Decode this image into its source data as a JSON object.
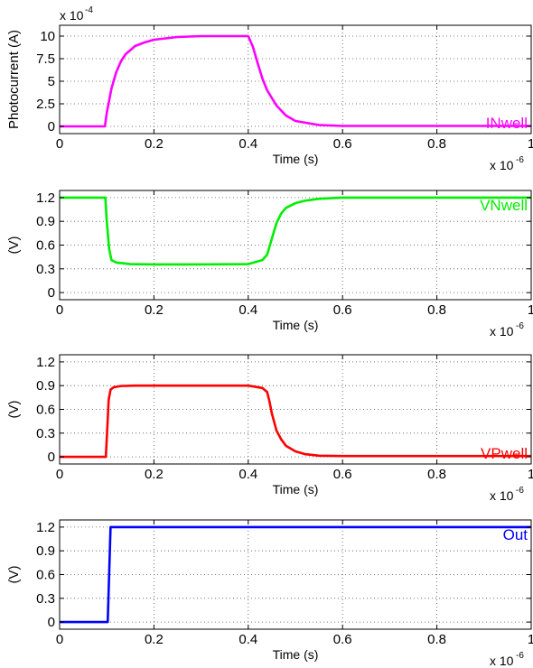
{
  "chart_data": [
    {
      "type": "line",
      "ylabel": "Photocurrent (A)",
      "xlabel": "Time (s)",
      "x_exponent_label": "x 10",
      "x_exponent": "-6",
      "y_exponent_label": "x 10",
      "y_exponent": "-4",
      "xlim": [
        0,
        1
      ],
      "ylim": [
        -0.8,
        11.2
      ],
      "xticks": [
        0,
        0.2,
        0.4,
        0.6,
        0.8,
        1
      ],
      "xtick_labels": [
        "0",
        "0.2",
        "0.4",
        "0.6",
        "0.8",
        "1"
      ],
      "yticks": [
        0,
        2.5,
        5,
        7.5,
        10
      ],
      "ytick_labels": [
        "0",
        "2.5",
        "5",
        "7.5",
        "10"
      ],
      "grid": true,
      "legend_position": "bottom-right",
      "series": [
        {
          "name": "INwell",
          "color": "#ff00ff",
          "x": [
            0,
            0.096,
            0.1,
            0.11,
            0.12,
            0.13,
            0.14,
            0.16,
            0.18,
            0.2,
            0.25,
            0.3,
            0.4,
            0.41,
            0.42,
            0.43,
            0.44,
            0.46,
            0.48,
            0.5,
            0.55,
            0.6,
            1.0
          ],
          "y": [
            0,
            0,
            1.5,
            4.2,
            6.0,
            7.2,
            8.0,
            8.9,
            9.3,
            9.6,
            9.9,
            10,
            10,
            8.8,
            7.0,
            5.3,
            4.0,
            2.3,
            1.2,
            0.6,
            0.15,
            0.05,
            0.05
          ]
        }
      ]
    },
    {
      "type": "line",
      "ylabel": "(V)",
      "xlabel": "Time (s)",
      "x_exponent_label": "x 10",
      "x_exponent": "-6",
      "xlim": [
        0,
        1
      ],
      "ylim": [
        -0.09,
        1.29
      ],
      "xticks": [
        0,
        0.2,
        0.4,
        0.6,
        0.8,
        1
      ],
      "xtick_labels": [
        "0",
        "0.2",
        "0.4",
        "0.6",
        "0.8",
        "1"
      ],
      "yticks": [
        0,
        0.3,
        0.6,
        0.9,
        1.2
      ],
      "ytick_labels": [
        "0",
        "0.3",
        "0.6",
        "0.9",
        "1.2"
      ],
      "grid": true,
      "legend_position": "top-right",
      "series": [
        {
          "name": "VNwell",
          "color": "#00ee00",
          "x": [
            0,
            0.097,
            0.1,
            0.105,
            0.11,
            0.12,
            0.15,
            0.2,
            0.3,
            0.4,
            0.43,
            0.44,
            0.45,
            0.46,
            0.47,
            0.48,
            0.5,
            0.52,
            0.55,
            0.6,
            1.0
          ],
          "y": [
            1.2,
            1.2,
            0.9,
            0.55,
            0.41,
            0.38,
            0.36,
            0.355,
            0.355,
            0.36,
            0.41,
            0.48,
            0.68,
            0.88,
            1.0,
            1.07,
            1.13,
            1.16,
            1.185,
            1.2,
            1.2
          ]
        }
      ]
    },
    {
      "type": "line",
      "ylabel": "(V)",
      "xlabel": "Time (s)",
      "x_exponent_label": "x 10",
      "x_exponent": "-6",
      "xlim": [
        0,
        1
      ],
      "ylim": [
        -0.09,
        1.29
      ],
      "xticks": [
        0,
        0.2,
        0.4,
        0.6,
        0.8,
        1
      ],
      "xtick_labels": [
        "0",
        "0.2",
        "0.4",
        "0.6",
        "0.8",
        "1"
      ],
      "yticks": [
        0,
        0.3,
        0.6,
        0.9,
        1.2
      ],
      "ytick_labels": [
        "0",
        "0.3",
        "0.6",
        "0.9",
        "1.2"
      ],
      "grid": true,
      "legend_position": "bottom-right",
      "series": [
        {
          "name": "VPwell",
          "color": "#ff0000",
          "x": [
            0,
            0.098,
            0.101,
            0.104,
            0.108,
            0.115,
            0.13,
            0.16,
            0.2,
            0.4,
            0.43,
            0.44,
            0.445,
            0.45,
            0.46,
            0.47,
            0.48,
            0.5,
            0.52,
            0.55,
            0.6,
            1.0
          ],
          "y": [
            0,
            0,
            0.35,
            0.72,
            0.85,
            0.88,
            0.895,
            0.9,
            0.9,
            0.9,
            0.87,
            0.82,
            0.7,
            0.55,
            0.33,
            0.22,
            0.14,
            0.07,
            0.035,
            0.015,
            0.01,
            0.01
          ]
        }
      ]
    },
    {
      "type": "line",
      "ylabel": "(V)",
      "xlabel": "Time (s)",
      "x_exponent_label": "x 10",
      "x_exponent": "-6",
      "xlim": [
        0,
        1
      ],
      "ylim": [
        -0.09,
        1.29
      ],
      "xticks": [
        0,
        0.2,
        0.4,
        0.6,
        0.8,
        1
      ],
      "xtick_labels": [
        "0",
        "0.2",
        "0.4",
        "0.6",
        "0.8",
        "1"
      ],
      "yticks": [
        0,
        0.3,
        0.6,
        0.9,
        1.2
      ],
      "ytick_labels": [
        "0",
        "0.3",
        "0.6",
        "0.9",
        "1.2"
      ],
      "grid": true,
      "legend_position": "top-right",
      "series": [
        {
          "name": "Out",
          "color": "#0000ff",
          "x": [
            0,
            0.102,
            0.108,
            0.109,
            1.0
          ],
          "y": [
            0,
            0,
            1.2,
            1.2,
            1.2
          ]
        }
      ]
    }
  ]
}
